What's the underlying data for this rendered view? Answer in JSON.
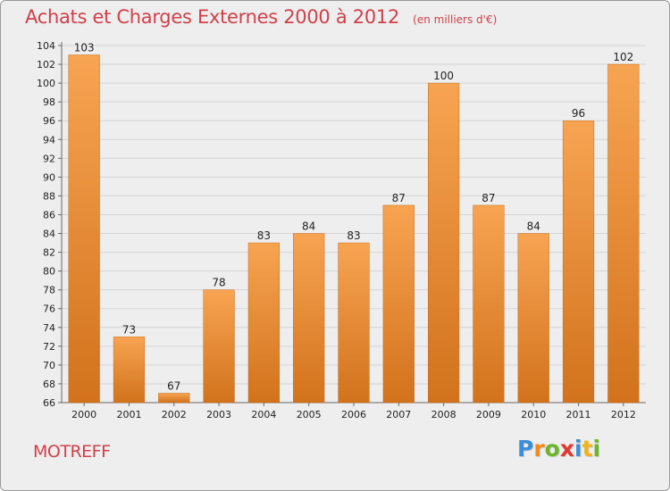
{
  "header": {
    "title": "Achats et Charges Externes 2000 à 2012",
    "unit": "(en milliers d'€)"
  },
  "footer": {
    "commune": "MOTREFF",
    "brand": "Proxiti",
    "brand_letters": [
      {
        "ch": "P",
        "color": "#3a8fd8"
      },
      {
        "ch": "r",
        "color": "#f08a1c"
      },
      {
        "ch": "o",
        "color": "#6cb52d"
      },
      {
        "ch": "x",
        "color": "#e2372f"
      },
      {
        "ch": "i",
        "color": "#3a8fd8"
      },
      {
        "ch": "t",
        "color": "#f0b51c"
      },
      {
        "ch": "i",
        "color": "#6cb52d"
      }
    ]
  },
  "colors": {
    "bar_top": "#f7a452",
    "bar_bottom": "#d2721c",
    "title": "#d0404a"
  },
  "chart_data": {
    "type": "bar",
    "title": "Achats et Charges Externes 2000 à 2012",
    "subtitle": "(en milliers d'€)",
    "xlabel": "",
    "ylabel": "",
    "categories": [
      "2000",
      "2001",
      "2002",
      "2003",
      "2004",
      "2005",
      "2006",
      "2007",
      "2008",
      "2009",
      "2010",
      "2011",
      "2012"
    ],
    "values": [
      103,
      73,
      67,
      78,
      83,
      84,
      83,
      87,
      100,
      87,
      84,
      96,
      102
    ],
    "ylim": [
      66,
      104
    ],
    "yticks": [
      66,
      68,
      70,
      72,
      74,
      76,
      78,
      80,
      82,
      84,
      86,
      88,
      90,
      92,
      94,
      96,
      98,
      100,
      102,
      104
    ],
    "grid": true,
    "legend": "none"
  }
}
